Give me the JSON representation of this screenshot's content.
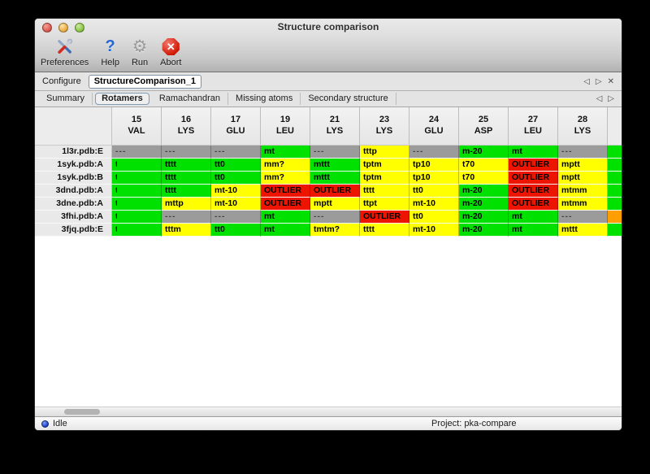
{
  "window": {
    "title": "Structure comparison"
  },
  "toolbar": {
    "buttons": [
      {
        "label": "Preferences",
        "icon": "preferences-tools-icon"
      },
      {
        "label": "Help",
        "icon": "help-question-icon"
      },
      {
        "label": "Run",
        "icon": "run-gear-icon"
      },
      {
        "label": "Abort",
        "icon": "abort-stop-icon"
      }
    ]
  },
  "configure": {
    "label": "Configure",
    "value": "StructureComparison_1"
  },
  "icons": {
    "back": "◁",
    "forward": "▷",
    "close": "✕",
    "help": "?",
    "gear": "⚙",
    "abort_x": "✕"
  },
  "tabs": [
    {
      "label": "Summary",
      "selected": false
    },
    {
      "label": "Rotamers",
      "selected": true
    },
    {
      "label": "Ramachandran",
      "selected": false
    },
    {
      "label": "Missing atoms",
      "selected": false
    },
    {
      "label": "Secondary structure",
      "selected": false
    }
  ],
  "legend_colors": {
    "green": "#00e100",
    "yellow": "#ffff00",
    "red": "#ed1500",
    "missing": "#9b9b9b",
    "orange": "#ff9e00"
  },
  "table": {
    "columns": [
      {
        "number": "15",
        "residue": "VAL"
      },
      {
        "number": "16",
        "residue": "LYS"
      },
      {
        "number": "17",
        "residue": "GLU"
      },
      {
        "number": "19",
        "residue": "LEU"
      },
      {
        "number": "21",
        "residue": "LYS"
      },
      {
        "number": "23",
        "residue": "LYS"
      },
      {
        "number": "24",
        "residue": "GLU"
      },
      {
        "number": "25",
        "residue": "ASP"
      },
      {
        "number": "27",
        "residue": "LEU"
      },
      {
        "number": "28",
        "residue": "LYS"
      }
    ],
    "rows": [
      {
        "label": "1l3r.pdb:E",
        "edge": "green",
        "cells": [
          {
            "v": "---",
            "c": "missing"
          },
          {
            "v": "---",
            "c": "missing"
          },
          {
            "v": "---",
            "c": "missing"
          },
          {
            "v": "mt",
            "c": "green"
          },
          {
            "v": "---",
            "c": "missing"
          },
          {
            "v": "tttp",
            "c": "yellow"
          },
          {
            "v": "---",
            "c": "missing"
          },
          {
            "v": "m-20",
            "c": "green"
          },
          {
            "v": "mt",
            "c": "green"
          },
          {
            "v": "---",
            "c": "missing"
          }
        ]
      },
      {
        "label": "1syk.pdb:A",
        "edge": "green",
        "cells": [
          {
            "v": "t",
            "c": "green",
            "clip": true
          },
          {
            "v": "tttt",
            "c": "green"
          },
          {
            "v": "tt0",
            "c": "green"
          },
          {
            "v": "mm?",
            "c": "yellow"
          },
          {
            "v": "mttt",
            "c": "green"
          },
          {
            "v": "tptm",
            "c": "yellow"
          },
          {
            "v": "tp10",
            "c": "yellow"
          },
          {
            "v": "t70",
            "c": "yellow"
          },
          {
            "v": "OUTLIER",
            "c": "red"
          },
          {
            "v": "mptt",
            "c": "yellow"
          }
        ]
      },
      {
        "label": "1syk.pdb:B",
        "edge": "green",
        "cells": [
          {
            "v": "t",
            "c": "green",
            "clip": true
          },
          {
            "v": "tttt",
            "c": "green"
          },
          {
            "v": "tt0",
            "c": "green"
          },
          {
            "v": "mm?",
            "c": "yellow"
          },
          {
            "v": "mttt",
            "c": "green"
          },
          {
            "v": "tptm",
            "c": "yellow"
          },
          {
            "v": "tp10",
            "c": "yellow"
          },
          {
            "v": "t70",
            "c": "yellow"
          },
          {
            "v": "OUTLIER",
            "c": "red"
          },
          {
            "v": "mptt",
            "c": "yellow"
          }
        ]
      },
      {
        "label": "3dnd.pdb:A",
        "edge": "green",
        "cells": [
          {
            "v": "t",
            "c": "green",
            "clip": true
          },
          {
            "v": "tttt",
            "c": "green"
          },
          {
            "v": "mt-10",
            "c": "yellow"
          },
          {
            "v": "OUTLIER",
            "c": "red"
          },
          {
            "v": "OUTLIER",
            "c": "red"
          },
          {
            "v": "tttt",
            "c": "yellow"
          },
          {
            "v": "tt0",
            "c": "yellow"
          },
          {
            "v": "m-20",
            "c": "green"
          },
          {
            "v": "OUTLIER",
            "c": "red"
          },
          {
            "v": "mtmm",
            "c": "yellow"
          }
        ]
      },
      {
        "label": "3dne.pdb:A",
        "edge": "green",
        "cells": [
          {
            "v": "t",
            "c": "green",
            "clip": true
          },
          {
            "v": "mttp",
            "c": "yellow"
          },
          {
            "v": "mt-10",
            "c": "yellow"
          },
          {
            "v": "OUTLIER",
            "c": "red"
          },
          {
            "v": "mptt",
            "c": "yellow"
          },
          {
            "v": "ttpt",
            "c": "yellow"
          },
          {
            "v": "mt-10",
            "c": "yellow"
          },
          {
            "v": "m-20",
            "c": "green"
          },
          {
            "v": "OUTLIER",
            "c": "red"
          },
          {
            "v": "mtmm",
            "c": "yellow"
          }
        ]
      },
      {
        "label": "3fhi.pdb:A",
        "edge": "orange",
        "cells": [
          {
            "v": "t",
            "c": "green",
            "clip": true
          },
          {
            "v": "---",
            "c": "missing"
          },
          {
            "v": "---",
            "c": "missing"
          },
          {
            "v": "mt",
            "c": "green"
          },
          {
            "v": "---",
            "c": "missing"
          },
          {
            "v": "OUTLIER",
            "c": "red"
          },
          {
            "v": "tt0",
            "c": "yellow"
          },
          {
            "v": "m-20",
            "c": "green"
          },
          {
            "v": "mt",
            "c": "green"
          },
          {
            "v": "---",
            "c": "missing"
          }
        ]
      },
      {
        "label": "3fjq.pdb:E",
        "edge": "green",
        "cells": [
          {
            "v": "t",
            "c": "green",
            "clip": true
          },
          {
            "v": "tttm",
            "c": "yellow"
          },
          {
            "v": "tt0",
            "c": "green"
          },
          {
            "v": "mt",
            "c": "green"
          },
          {
            "v": "tmtm?",
            "c": "yellow"
          },
          {
            "v": "tttt",
            "c": "yellow"
          },
          {
            "v": "mt-10",
            "c": "yellow"
          },
          {
            "v": "m-20",
            "c": "green"
          },
          {
            "v": "mt",
            "c": "green"
          },
          {
            "v": "mttt",
            "c": "yellow"
          }
        ]
      }
    ]
  },
  "statusbar": {
    "status": "Idle",
    "project": "Project: pka-compare"
  }
}
